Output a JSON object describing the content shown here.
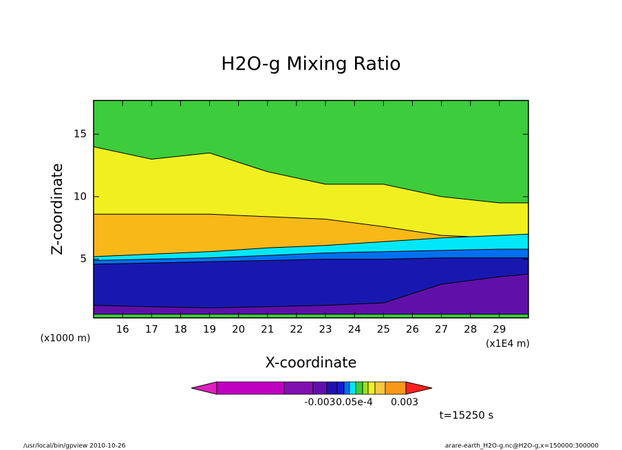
{
  "chart_data": {
    "type": "contour",
    "title": "H2O-g Mixing Ratio",
    "xlabel": "X-coordinate",
    "ylabel": "Z-coordinate",
    "x_unit": "(x1000 m)",
    "x_unit2": "(x1E4 m)",
    "xlim": [
      15,
      30
    ],
    "xticks": [
      16,
      17,
      18,
      19,
      20,
      21,
      22,
      23,
      24,
      25,
      26,
      27,
      28,
      29
    ],
    "ylim": [
      0.3,
      17.7
    ],
    "yticks": [
      5,
      10,
      15
    ],
    "background": "#3ccc3c",
    "x": [
      15,
      17,
      19,
      21,
      23,
      25,
      27,
      29,
      30
    ],
    "bands": [
      {
        "color": "#f0f020",
        "z": [
          14,
          13,
          13.5,
          12,
          11,
          11,
          10,
          9.5,
          9.5
        ]
      },
      {
        "color": "#f8b818",
        "z": [
          8.6,
          8.6,
          8.6,
          8.4,
          8.2,
          7.6,
          6.9,
          6.7,
          6.6
        ]
      },
      {
        "color": "#00e8f8",
        "z": [
          5.2,
          5.4,
          5.6,
          5.9,
          6.1,
          6.4,
          6.7,
          6.9,
          7.0
        ]
      },
      {
        "color": "#0070f0",
        "z": [
          4.9,
          5.0,
          5.1,
          5.3,
          5.5,
          5.6,
          5.7,
          5.8,
          5.8
        ]
      },
      {
        "color": "#1818b0",
        "z": [
          4.6,
          4.7,
          4.8,
          4.9,
          5.0,
          5.0,
          5.1,
          5.1,
          5.1
        ]
      },
      {
        "color": "#6010a8",
        "z": [
          1.3,
          1.2,
          1.1,
          1.2,
          1.3,
          1.5,
          3.0,
          3.6,
          3.8
        ]
      },
      {
        "color": "#3ccc3c",
        "z": [
          0.6,
          0.6,
          0.6,
          0.6,
          0.6,
          0.6,
          0.6,
          0.6,
          0.6
        ]
      }
    ],
    "colorbar": {
      "colors": [
        "#e020c0",
        "#c000c0",
        "#8010b0",
        "#6010a8",
        "#2010b0",
        "#1818d0",
        "#0070f0",
        "#00e8f8",
        "#3ccc3c",
        "#a0e020",
        "#f0f020",
        "#f8c840",
        "#f89818",
        "#ff2020"
      ],
      "labels": [
        "-0.003",
        "0.05e-4",
        "0.003"
      ]
    },
    "time_label": "t=15250 s",
    "footer_left": "/usr/local/bin/gpview  2010-10-26",
    "footer_right": "arare-earth_H2O-g.nc@H2O-g,x=150000:300000"
  }
}
